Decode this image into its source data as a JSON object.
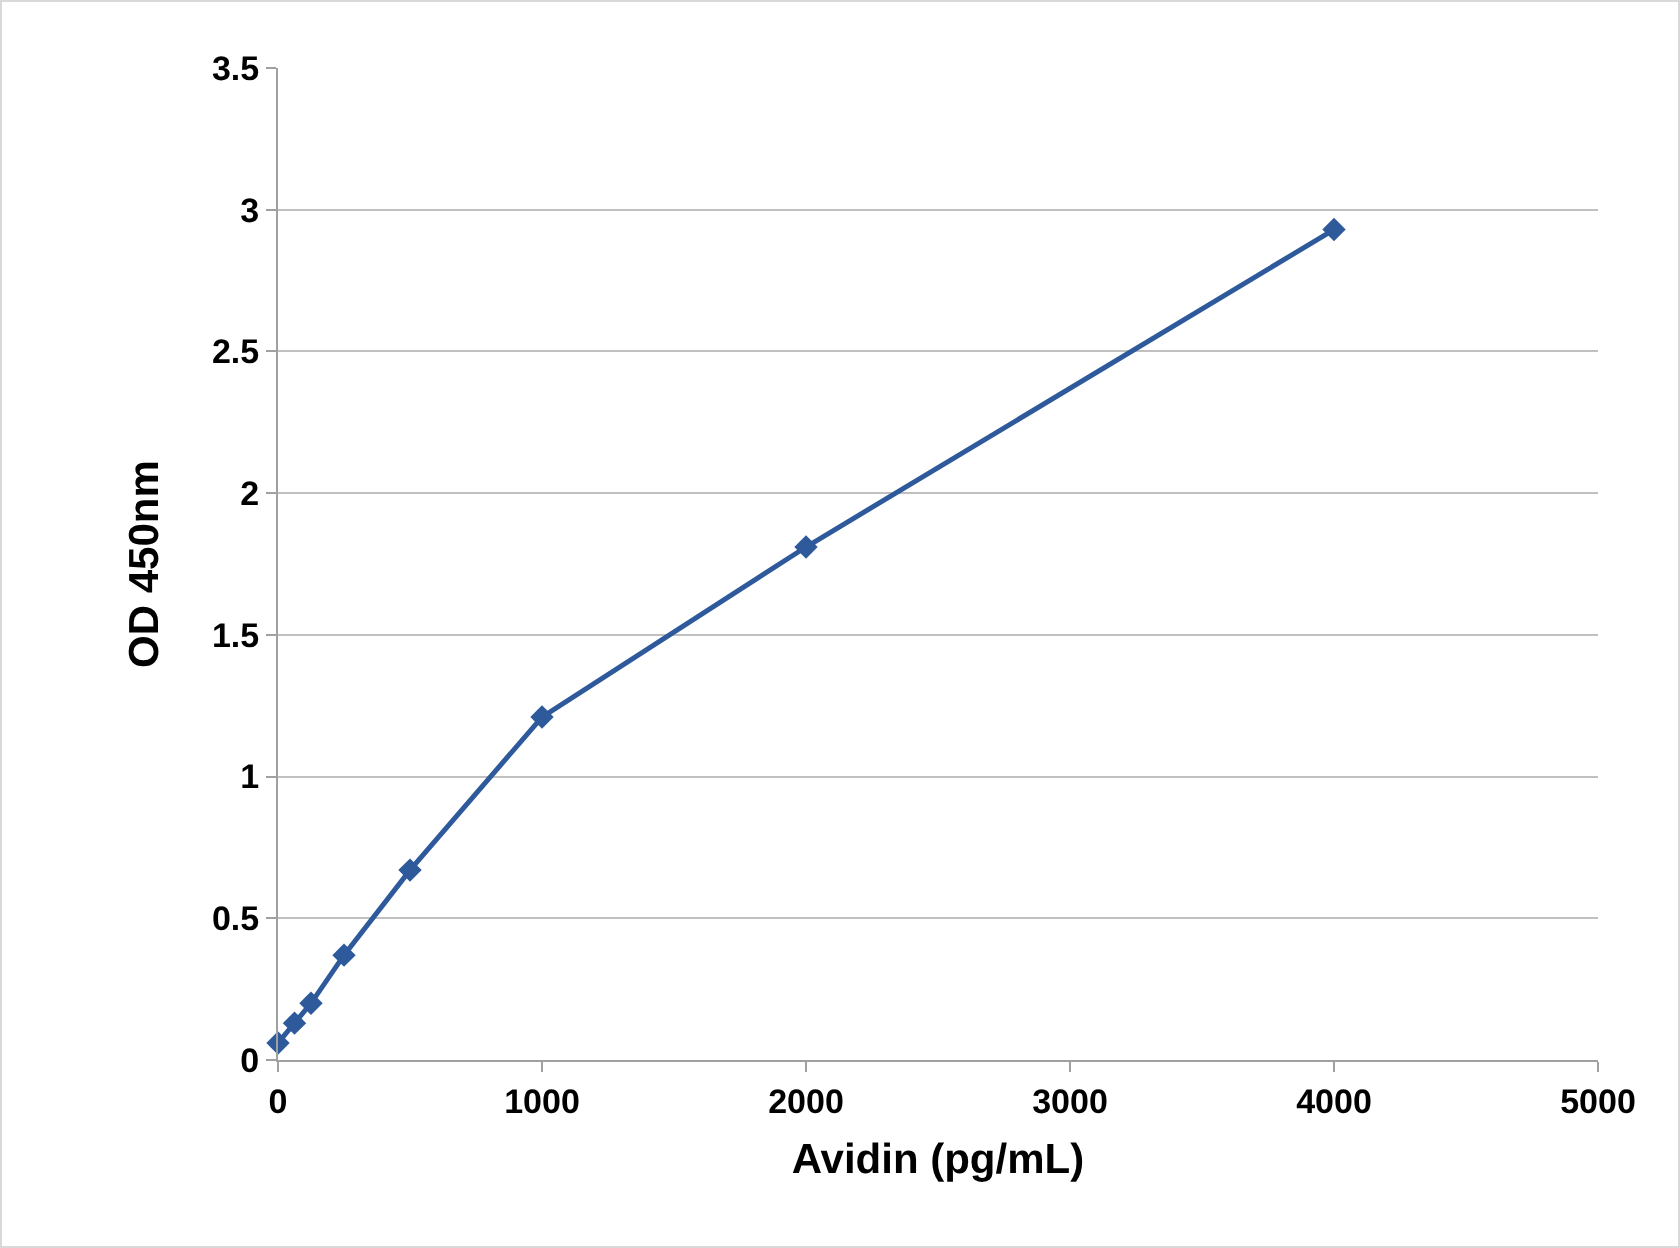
{
  "chart_data": {
    "type": "line",
    "xlabel": "Avidin (pg/mL)",
    "ylabel": "OD 450nm",
    "x": [
      0,
      62.5,
      125,
      250,
      500,
      1000,
      2000,
      4000
    ],
    "series": [
      {
        "color": "#2e5a9c",
        "values": [
          0.06,
          0.13,
          0.2,
          0.37,
          0.67,
          1.21,
          1.81,
          2.93
        ]
      }
    ],
    "xlim": [
      0,
      5000
    ],
    "xticks": [
      0,
      1000,
      2000,
      3000,
      4000,
      5000
    ],
    "ylim": [
      0,
      3.5
    ],
    "yticks": [
      0,
      0.5,
      1,
      1.5,
      2,
      2.5,
      3,
      3.5
    ],
    "grid": "y",
    "marker": "diamond",
    "line_style": "solid"
  }
}
